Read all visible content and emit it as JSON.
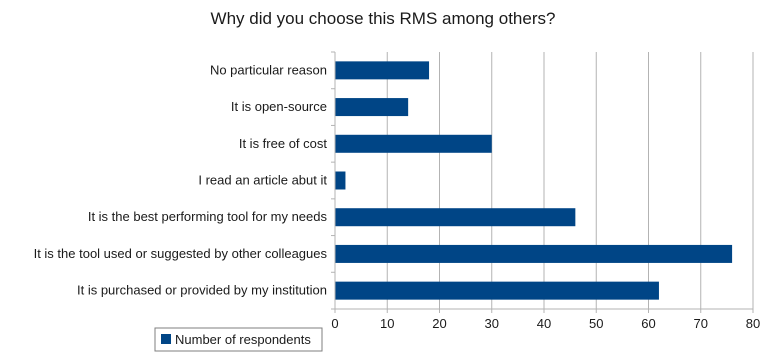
{
  "chart_data": {
    "type": "bar",
    "orientation": "horizontal",
    "title": "Why did you choose this RMS among others?",
    "categories": [
      "No particular reason",
      "It is open-source",
      "It is free of cost",
      "I read an article abut it",
      "It is the best performing tool for my needs",
      "It is the tool used or suggested by other colleagues",
      "It is purchased or provided by my institution"
    ],
    "series": [
      {
        "name": "Number of respondents",
        "values": [
          18,
          14,
          30,
          2,
          46,
          76,
          62
        ],
        "color": "#004586"
      }
    ],
    "xlim": [
      0,
      80
    ],
    "xticks": [
      0,
      10,
      20,
      30,
      40,
      50,
      60,
      70,
      80
    ],
    "xlabel": "",
    "ylabel": "",
    "grid": true,
    "legend_position": "bottom-left"
  }
}
